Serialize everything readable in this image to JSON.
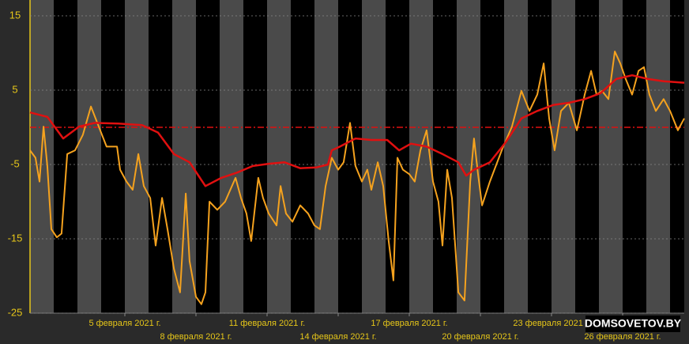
{
  "chart_data": {
    "type": "line",
    "xlim": [
      1,
      28.6
    ],
    "ylim": [
      -25,
      15
    ],
    "yticks": [
      15,
      5,
      -5,
      -15,
      -25
    ],
    "xticks": [
      {
        "value": 5,
        "label": "5 февраля 2021 г."
      },
      {
        "value": 8,
        "label": "8 февраля 2021 г."
      },
      {
        "value": 11,
        "label": "11 февраля 2021 г."
      },
      {
        "value": 14,
        "label": "14 февраля 2021 г."
      },
      {
        "value": 17,
        "label": "17 февраля 2021 г."
      },
      {
        "value": 20,
        "label": "20 февраля 2021 г."
      },
      {
        "value": 23,
        "label": "23 февраля 2021 г."
      },
      {
        "value": 26,
        "label": "26 февраля 2021 г."
      }
    ],
    "grid": true,
    "reference_line": {
      "value": 0,
      "color": "#e01010"
    },
    "watermark": "DOMSOVETOV.BY",
    "series": [
      {
        "color": "#f5a21e",
        "width": 2,
        "x": [
          1.0,
          1.23,
          1.4,
          1.57,
          1.73,
          1.9,
          2.13,
          2.33,
          2.57,
          2.9,
          3.23,
          3.57,
          3.9,
          4.23,
          4.67,
          4.8,
          5.07,
          5.33,
          5.57,
          5.8,
          6.07,
          6.3,
          6.57,
          6.8,
          7.07,
          7.33,
          7.57,
          7.73,
          8.0,
          8.23,
          8.4,
          8.57,
          8.9,
          9.23,
          9.67,
          9.9,
          10.13,
          10.33,
          10.63,
          10.83,
          11.07,
          11.4,
          11.57,
          11.8,
          12.07,
          12.4,
          12.73,
          13.0,
          13.23,
          13.47,
          13.73,
          14.0,
          14.23,
          14.5,
          14.73,
          15.0,
          15.23,
          15.4,
          15.67,
          15.9,
          16.13,
          16.33,
          16.5,
          16.73,
          17.0,
          17.23,
          17.47,
          17.73,
          18.0,
          18.23,
          18.4,
          18.6,
          18.8,
          19.07,
          19.33,
          19.57,
          19.73,
          19.9,
          20.07,
          20.4,
          20.9,
          21.33,
          21.73,
          22.07,
          22.4,
          22.67,
          22.9,
          23.13,
          23.4,
          23.73,
          24.07,
          24.4,
          24.67,
          24.9,
          25.13,
          25.4,
          25.67,
          25.9,
          26.13,
          26.4,
          26.67,
          26.9,
          27.13,
          27.4,
          27.73,
          28.0,
          28.33,
          28.6
        ],
        "values": [
          -3.1,
          -4.1,
          -7.3,
          0.1,
          -5.2,
          -13.7,
          -14.8,
          -14.3,
          -3.6,
          -3.1,
          -1.0,
          2.8,
          0.1,
          -2.6,
          -2.6,
          -5.7,
          -7.3,
          -8.4,
          -3.6,
          -7.9,
          -9.5,
          -15.9,
          -9.5,
          -13.7,
          -19.0,
          -22.2,
          -8.9,
          -18.0,
          -22.8,
          -23.8,
          -22.2,
          -10.0,
          -11.1,
          -10.0,
          -6.8,
          -9.5,
          -11.6,
          -15.3,
          -6.8,
          -9.5,
          -11.6,
          -13.2,
          -7.9,
          -11.6,
          -12.7,
          -10.5,
          -11.6,
          -13.2,
          -13.7,
          -7.9,
          -4.1,
          -5.7,
          -4.7,
          0.6,
          -5.2,
          -7.3,
          -5.7,
          -8.4,
          -4.7,
          -7.9,
          -15.3,
          -20.6,
          -4.1,
          -5.7,
          -6.3,
          -7.3,
          -3.1,
          -0.4,
          -7.3,
          -10.0,
          -15.9,
          -5.7,
          -9.5,
          -22.2,
          -23.3,
          -7.3,
          -1.5,
          -6.3,
          -10.5,
          -7.3,
          -3.1,
          0.1,
          4.9,
          2.2,
          4.4,
          8.6,
          1.2,
          -3.1,
          2.2,
          3.3,
          -0.4,
          4.4,
          7.6,
          4.4,
          4.9,
          3.8,
          10.2,
          8.6,
          6.5,
          4.4,
          7.6,
          8.1,
          4.4,
          2.2,
          3.8,
          2.2,
          -0.4,
          1.2
        ]
      },
      {
        "color": "#e01010",
        "width": 2.5,
        "x": [
          1.0,
          1.73,
          2.4,
          3.07,
          3.73,
          4.73,
          5.73,
          6.4,
          7.07,
          7.73,
          8.4,
          9.07,
          9.73,
          10.4,
          11.07,
          11.73,
          12.4,
          13.07,
          13.57,
          13.73,
          14.07,
          14.73,
          15.4,
          16.07,
          16.57,
          17.07,
          17.73,
          18.4,
          19.07,
          19.4,
          19.73,
          20.4,
          21.07,
          21.73,
          22.4,
          23.07,
          23.73,
          24.4,
          25.07,
          25.73,
          26.4,
          27.07,
          27.73,
          28.6
        ],
        "values": [
          2.0,
          1.4,
          -1.5,
          0.1,
          0.6,
          0.5,
          0.3,
          -0.7,
          -3.6,
          -4.7,
          -7.9,
          -6.8,
          -6.1,
          -5.2,
          -4.9,
          -4.7,
          -5.5,
          -5.4,
          -5.0,
          -3.1,
          -2.6,
          -1.5,
          -1.7,
          -1.7,
          -3.1,
          -2.2,
          -2.6,
          -3.6,
          -4.7,
          -6.5,
          -5.7,
          -4.7,
          -2.0,
          1.2,
          2.2,
          3.0,
          3.3,
          3.8,
          4.6,
          6.5,
          7.0,
          6.5,
          6.2,
          6.0
        ]
      }
    ]
  }
}
